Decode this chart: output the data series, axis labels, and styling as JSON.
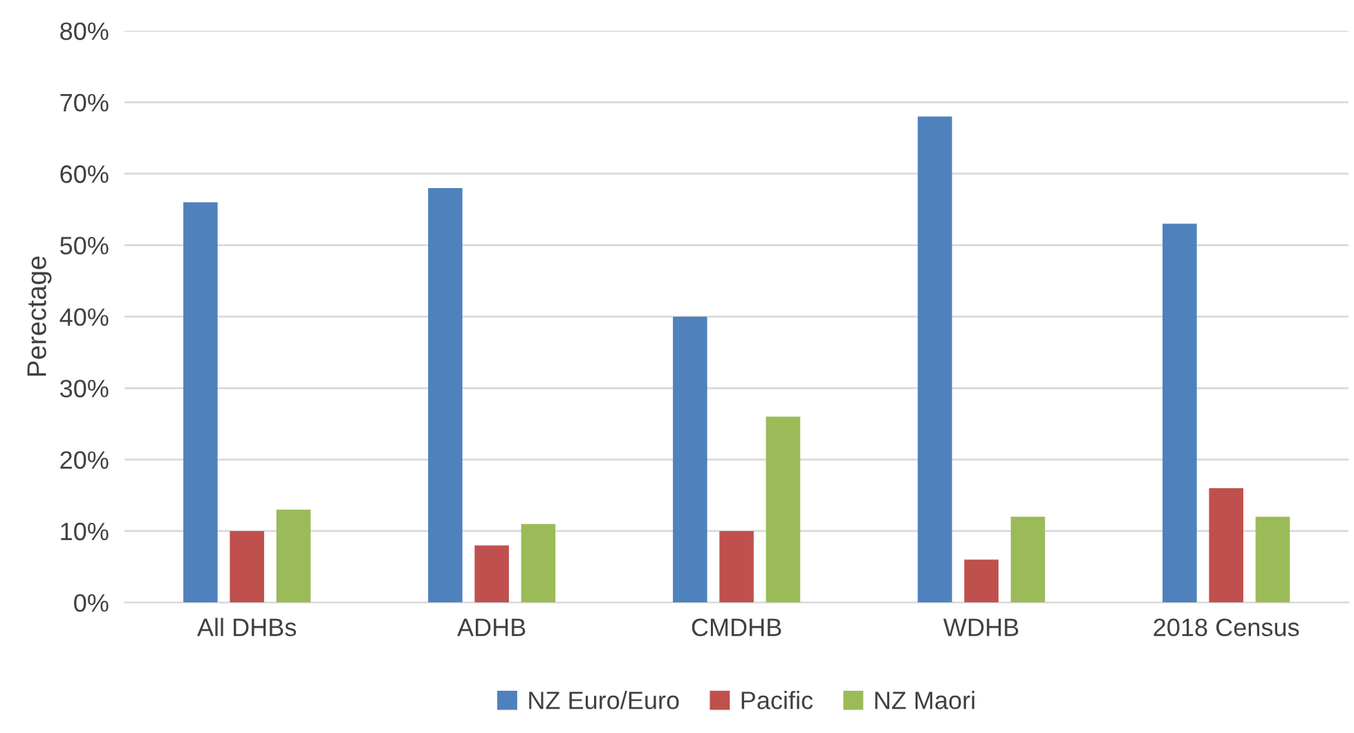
{
  "chart_data": {
    "type": "bar",
    "ylabel": "Perectage",
    "categories": [
      "All DHBs",
      "ADHB",
      "CMDHB",
      "WDHB",
      "2018 Census"
    ],
    "series": [
      {
        "name": "NZ Euro/Euro",
        "color": "#4f81bd",
        "values": [
          56,
          58,
          40,
          68,
          53
        ]
      },
      {
        "name": "Pacific",
        "color": "#c0504d",
        "values": [
          10,
          8,
          10,
          6,
          16
        ]
      },
      {
        "name": "NZ Maori",
        "color": "#9bbb59",
        "values": [
          13,
          11,
          26,
          12,
          12
        ]
      }
    ],
    "ylim": [
      0,
      80
    ],
    "yticks": [
      {
        "value": 0,
        "label": "0%"
      },
      {
        "value": 10,
        "label": "10%"
      },
      {
        "value": 20,
        "label": "20%"
      },
      {
        "value": 30,
        "label": "30%"
      },
      {
        "value": 40,
        "label": "40%"
      },
      {
        "value": 50,
        "label": "50%"
      },
      {
        "value": 60,
        "label": "60%"
      },
      {
        "value": 70,
        "label": "70%"
      },
      {
        "value": 80,
        "label": "80%"
      }
    ],
    "grid": "y",
    "legend": "bottom"
  }
}
